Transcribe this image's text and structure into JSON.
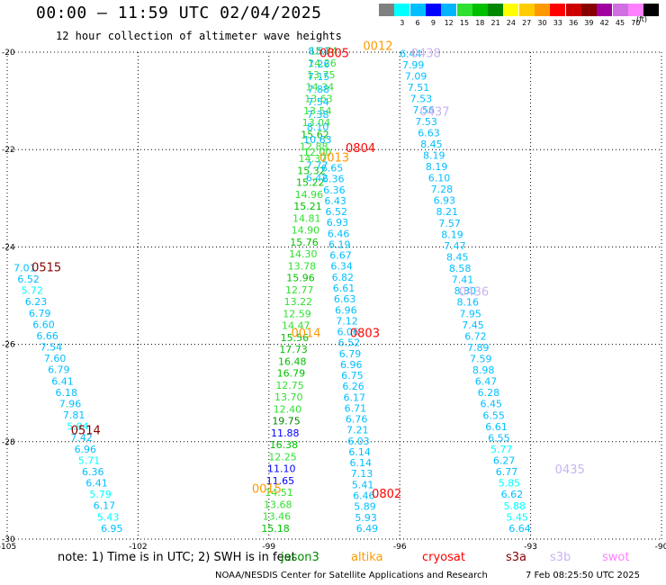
{
  "title": "00:00 – 11:59 UTC 02/04/2025",
  "subtitle": "12 hour collection of altimeter wave heights",
  "colorbar": {
    "unit": "(ft)",
    "bins": [
      {
        "label": "",
        "color": "#808080"
      },
      {
        "label": "3",
        "color": "#00ffff"
      },
      {
        "label": "6",
        "color": "#00bfff"
      },
      {
        "label": "9",
        "color": "#0000ff"
      },
      {
        "label": "12",
        "color": "#00b4ff"
      },
      {
        "label": "15",
        "color": "#30e030"
      },
      {
        "label": "18",
        "color": "#00c000"
      },
      {
        "label": "21",
        "color": "#008800"
      },
      {
        "label": "24",
        "color": "#ffff00"
      },
      {
        "label": "27",
        "color": "#ffcc00"
      },
      {
        "label": "30",
        "color": "#ff9900"
      },
      {
        "label": "33",
        "color": "#ff0000"
      },
      {
        "label": "36",
        "color": "#cc0000"
      },
      {
        "label": "39",
        "color": "#880000"
      },
      {
        "label": "42",
        "color": "#a000a0"
      },
      {
        "label": "45",
        "color": "#d070e0"
      },
      {
        "label": "70",
        "color": "#ff80ff"
      },
      {
        "label": "",
        "color": "#000000"
      }
    ]
  },
  "map": {
    "lon_range": [
      -105,
      -90
    ],
    "lat_range": [
      -30,
      -20
    ],
    "lon_ticks": [
      "-105",
      "-102",
      "-99",
      "-96",
      "-93",
      "-90"
    ],
    "lat_ticks": [
      "-20",
      "-22",
      "-24",
      "-26",
      "-28",
      "-30"
    ]
  },
  "pass_labels": [
    {
      "text": "0012",
      "color": "#ff9900",
      "lon": -96.5,
      "lat": -19.95
    },
    {
      "text": "0805",
      "color": "#ff0000",
      "lon": -97.5,
      "lat": -20.1
    },
    {
      "text": "0438",
      "color": "#c8b4f0",
      "lon": -95.4,
      "lat": -20.1
    },
    {
      "text": "0437",
      "color": "#c8b4f0",
      "lon": -95.2,
      "lat": -21.3
    },
    {
      "text": "0804",
      "color": "#ff0000",
      "lon": -96.9,
      "lat": -22.05
    },
    {
      "text": "0013",
      "color": "#ff9900",
      "lon": -97.5,
      "lat": -22.25
    },
    {
      "text": "0515",
      "color": "#880000",
      "lon": -104.1,
      "lat": -24.5
    },
    {
      "text": "0436",
      "color": "#c8b4f0",
      "lon": -94.3,
      "lat": -25.0
    },
    {
      "text": "0014",
      "color": "#ff9900",
      "lon": -98.15,
      "lat": -25.85
    },
    {
      "text": "0803",
      "color": "#ff0000",
      "lon": -96.8,
      "lat": -25.85
    },
    {
      "text": "0514",
      "color": "#880000",
      "lon": -103.2,
      "lat": -27.85
    },
    {
      "text": "0435",
      "color": "#c8b4f0",
      "lon": -92.1,
      "lat": -28.65
    },
    {
      "text": "0015",
      "color": "#ff9900",
      "lon": -99.05,
      "lat": -29.05
    },
    {
      "text": "0802",
      "color": "#ff0000",
      "lon": -96.3,
      "lat": -29.15
    }
  ],
  "tracks": [
    {
      "satellite": "jason3",
      "color_comment": "colors by wave height",
      "start": [
        -97.75,
        -20.05
      ],
      "end": [
        -98.85,
        -29.85
      ],
      "values": [
        "15.74",
        "14.26",
        "13.75",
        "14.34",
        "13.63",
        "13.54",
        "13.04",
        "15.62",
        "12.88",
        "14.37",
        "15.32",
        "15.22",
        "14.96",
        "15.21",
        "14.81",
        "14.90",
        "15.76",
        "14.30",
        "13.78",
        "15.96",
        "12.77",
        "13.22",
        "12.59",
        "14.47",
        "15.56",
        "17.73",
        "16.48",
        "16.79",
        "12.75",
        "13.70",
        "12.40",
        "19.75",
        "11.88",
        "16.38",
        "12.25",
        "11.10",
        "11.65",
        "14.51",
        "13.68",
        "13.46",
        "15.18"
      ],
      "colors": [
        "#00c000",
        "#30e030",
        "#30e030",
        "#30e030",
        "#30e030",
        "#30e030",
        "#30e030",
        "#00c000",
        "#30e030",
        "#30e030",
        "#00c000",
        "#00c000",
        "#30e030",
        "#00c000",
        "#30e030",
        "#30e030",
        "#00c000",
        "#30e030",
        "#30e030",
        "#00c000",
        "#30e030",
        "#30e030",
        "#30e030",
        "#30e030",
        "#00c000",
        "#00c000",
        "#00c000",
        "#00c000",
        "#30e030",
        "#30e030",
        "#30e030",
        "#008800",
        "#0000ff",
        "#00c000",
        "#30e030",
        "#0000ff",
        "#0000ff",
        "#30e030",
        "#30e030",
        "#30e030",
        "#00c000"
      ]
    },
    {
      "satellite": "cryosat",
      "start": [
        -97.85,
        -20.05
      ],
      "end": [
        -97.9,
        -22.65
      ],
      "values": [
        "8.51",
        "7.26",
        "7.15",
        "7.88",
        "7.54",
        "7.38",
        "8.10",
        "10.63",
        "12.00",
        "7.77",
        "6.42"
      ],
      "colors": [
        "#00bfff",
        "#00bfff",
        "#00bfff",
        "#00bfff",
        "#00bfff",
        "#00bfff",
        "#00bfff",
        "#00b4ff",
        "#30e030",
        "#00bfff",
        "#00bfff"
      ]
    },
    {
      "satellite": "altika",
      "start": [
        -97.55,
        -22.45
      ],
      "end": [
        -96.75,
        -29.85
      ],
      "values": [
        "6.65",
        "6.36",
        "6.36",
        "6.43",
        "6.52",
        "6.93",
        "6.46",
        "6.19",
        "6.67",
        "6.34",
        "6.82",
        "6.61",
        "6.63",
        "6.96",
        "7.12",
        "6.06",
        "6.52",
        "6.79",
        "6.96",
        "6.75",
        "6.26",
        "6.17",
        "6.71",
        "6.76",
        "7.21",
        "6.03",
        "6.14",
        "6.14",
        "7.13",
        "5.41",
        "6.46",
        "5.89",
        "5.93",
        "6.49"
      ],
      "colors": [
        "#00bfff",
        "#00bfff",
        "#00bfff",
        "#00bfff",
        "#00bfff",
        "#00bfff",
        "#00bfff",
        "#00bfff",
        "#00bfff",
        "#00bfff",
        "#00bfff",
        "#00bfff",
        "#00bfff",
        "#00bfff",
        "#00bfff",
        "#00bfff",
        "#00bfff",
        "#00bfff",
        "#00bfff",
        "#00bfff",
        "#00bfff",
        "#00bfff",
        "#00bfff",
        "#00bfff",
        "#00bfff",
        "#00bfff",
        "#00bfff",
        "#00bfff",
        "#00bfff",
        "#00bfff",
        "#00bfff",
        "#00bfff",
        "#00bfff",
        "#00bfff"
      ]
    },
    {
      "satellite": "s3b",
      "start": [
        -95.75,
        -20.1
      ],
      "end": [
        -93.25,
        -29.85
      ],
      "values": [
        "6.44",
        "7.99",
        "7.09",
        "7.51",
        "7.53",
        "7.56",
        "7.53",
        "6.63",
        "8.45",
        "8.19",
        "8.19",
        "6.10",
        "7.28",
        "6.93",
        "8.21",
        "7.57",
        "8.19",
        "7.47",
        "8.45",
        "8.58",
        "7.41",
        "8.30",
        "8.16",
        "7.95",
        "7.45",
        "6.72",
        "7.89",
        "7.59",
        "8.98",
        "6.47",
        "6.28",
        "6.45",
        "6.55",
        "6.61",
        "6.55",
        "5.77",
        "6.27",
        "6.77",
        "5.85",
        "6.62",
        "5.88",
        "5.45",
        "6.64"
      ],
      "colors": [
        "#00bfff",
        "#00bfff",
        "#00bfff",
        "#00bfff",
        "#00bfff",
        "#00bfff",
        "#00bfff",
        "#00bfff",
        "#00bfff",
        "#00bfff",
        "#00bfff",
        "#00bfff",
        "#00bfff",
        "#00bfff",
        "#00bfff",
        "#00bfff",
        "#00bfff",
        "#00bfff",
        "#00bfff",
        "#00bfff",
        "#00bfff",
        "#00bfff",
        "#00bfff",
        "#00bfff",
        "#00bfff",
        "#00bfff",
        "#00bfff",
        "#00bfff",
        "#00bfff",
        "#00bfff",
        "#00bfff",
        "#00bfff",
        "#00bfff",
        "#00bfff",
        "#00bfff",
        "#00ffff",
        "#00bfff",
        "#00bfff",
        "#00ffff",
        "#00bfff",
        "#00ffff",
        "#00ffff",
        "#00bfff"
      ]
    },
    {
      "satellite": "s3a",
      "start": [
        -104.6,
        -24.5
      ],
      "end": [
        -102.6,
        -29.85
      ],
      "values": [
        "7.01",
        "6.52",
        "5.72",
        "6.23",
        "6.79",
        "6.60",
        "6.66",
        "7.54",
        "7.60",
        "6.79",
        "6.41",
        "6.18",
        "7.96",
        "7.81",
        "5.94",
        "7.42",
        "6.96",
        "5.71",
        "6.36",
        "6.41",
        "5.79",
        "6.17",
        "5.43",
        "6.95"
      ],
      "colors": [
        "#00bfff",
        "#00bfff",
        "#00ffff",
        "#00bfff",
        "#00bfff",
        "#00bfff",
        "#00bfff",
        "#00bfff",
        "#00bfff",
        "#00bfff",
        "#00bfff",
        "#00bfff",
        "#00bfff",
        "#00bfff",
        "#00ffff",
        "#00bfff",
        "#00bfff",
        "#00ffff",
        "#00bfff",
        "#00bfff",
        "#00ffff",
        "#00bfff",
        "#00ffff",
        "#00bfff"
      ]
    }
  ],
  "note": "note:  1) Time is in UTC;  2) SWH is in feet",
  "legend": [
    {
      "name": "jason3",
      "color": "#008800"
    },
    {
      "name": "altika",
      "color": "#ff9900"
    },
    {
      "name": "cryosat",
      "color": "#ff0000"
    },
    {
      "name": "s3a",
      "color": "#880000"
    },
    {
      "name": "s3b",
      "color": "#c8b4f0"
    },
    {
      "name": "swot",
      "color": "#ff80ff"
    }
  ],
  "credit": "NOAA/NESDIS Center for Satellite Applications and Research",
  "timestamp": "7 Feb 08:25:50 UTC 2025"
}
